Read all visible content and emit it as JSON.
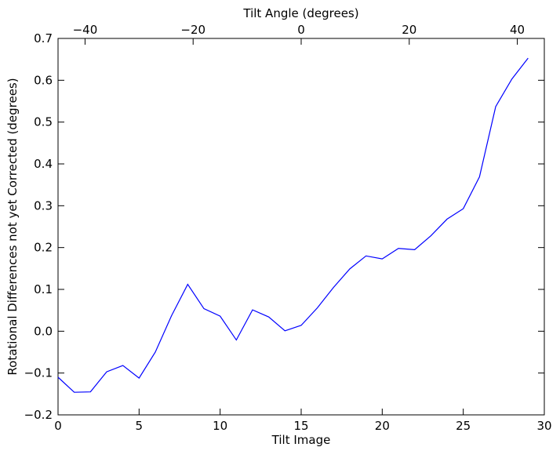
{
  "chart_data": {
    "type": "line",
    "title": "",
    "xlabel": "Tilt Image",
    "ylabel": "Rotational Differences not yet Corrected (degrees)",
    "top_xlabel": "Tilt Angle (degrees)",
    "xlim": [
      0,
      30
    ],
    "ylim": [
      -0.2,
      0.7
    ],
    "top_xlim": [
      -45,
      45
    ],
    "x_ticks": [
      0,
      5,
      10,
      15,
      20,
      25,
      30
    ],
    "x_tick_labels": [
      "0",
      "5",
      "10",
      "15",
      "20",
      "25",
      "30"
    ],
    "y_ticks": [
      -0.2,
      -0.1,
      0.0,
      0.1,
      0.2,
      0.3,
      0.4,
      0.5,
      0.6,
      0.7
    ],
    "y_tick_labels": [
      "−0.2",
      "−0.1",
      "0.0",
      "0.1",
      "0.2",
      "0.3",
      "0.4",
      "0.5",
      "0.6",
      "0.7"
    ],
    "top_x_ticks": [
      -40,
      -20,
      0,
      20,
      40
    ],
    "top_x_tick_labels": [
      "−40",
      "−20",
      "0",
      "20",
      "40"
    ],
    "grid": false,
    "series": [
      {
        "color": "#0000ff",
        "x": [
          0,
          1,
          2,
          3,
          4,
          5,
          6,
          7,
          8,
          9,
          10,
          11,
          12,
          13,
          14,
          15,
          16,
          17,
          18,
          19,
          20,
          21,
          22,
          23,
          24,
          25,
          26,
          27,
          28,
          29
        ],
        "y": [
          -0.11,
          -0.146,
          -0.145,
          -0.097,
          -0.082,
          -0.112,
          -0.05,
          0.037,
          0.112,
          0.054,
          0.036,
          -0.021,
          0.051,
          0.034,
          0.001,
          0.014,
          0.056,
          0.105,
          0.149,
          0.18,
          0.173,
          0.198,
          0.195,
          0.228,
          0.268,
          0.293,
          0.369,
          0.537,
          0.603,
          0.653
        ]
      }
    ]
  }
}
